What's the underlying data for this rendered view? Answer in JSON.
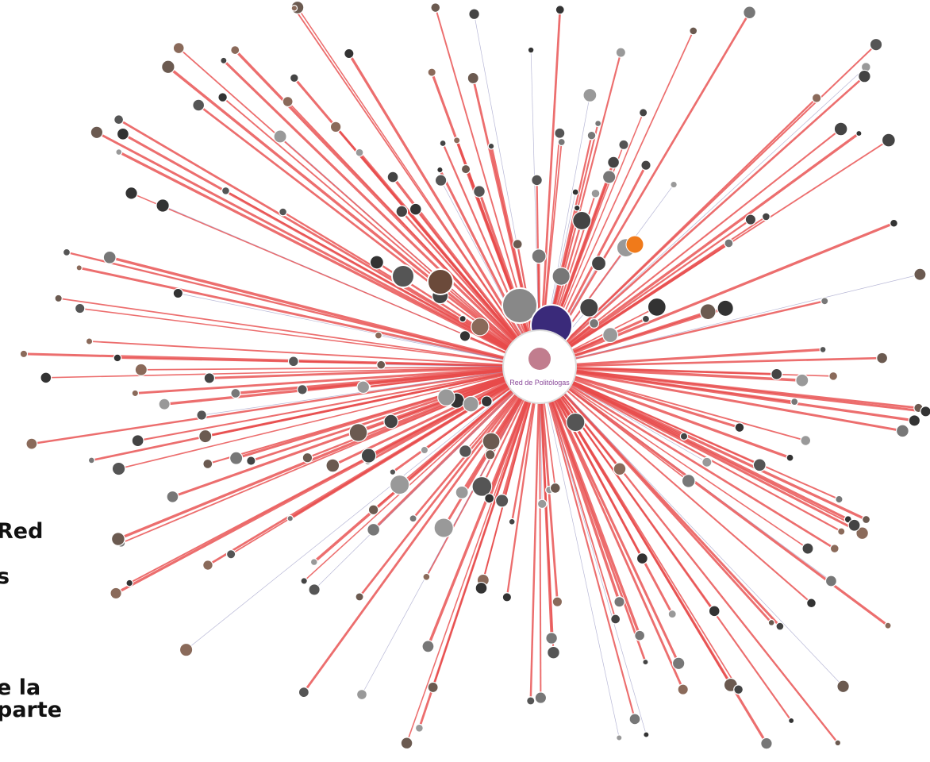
{
  "side_text": [
    "Red",
    "s",
    "e la",
    "parte"
  ],
  "center_node": {
    "label": "Red de Politólogas"
  }
}
